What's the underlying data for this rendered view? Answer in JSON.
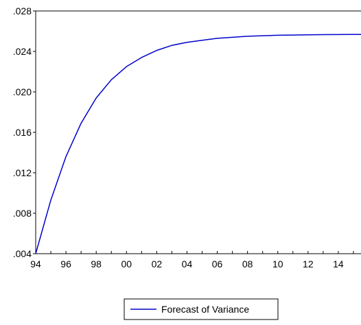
{
  "chart_data": {
    "type": "line",
    "title": "",
    "xlabel": "",
    "ylabel": "",
    "x_tick_labels": [
      "94",
      "96",
      "98",
      "00",
      "02",
      "04",
      "06",
      "08",
      "10",
      "12",
      "14"
    ],
    "y_tick_labels": [
      ".004",
      ".008",
      ".012",
      ".016",
      ".020",
      ".024",
      ".028"
    ],
    "y_ticks": [
      0.004,
      0.008,
      0.012,
      0.016,
      0.02,
      0.024,
      0.028
    ],
    "ylim": [
      0.004,
      0.028
    ],
    "xlim": [
      1994,
      2015.5
    ],
    "grid": false,
    "legend_position": "bottom-center",
    "series": [
      {
        "name": "Forecast of Variance",
        "color": "#0000cc",
        "x": [
          1994,
          1995,
          1996,
          1997,
          1998,
          1999,
          2000,
          2001,
          2002,
          2003,
          2004,
          2005,
          2006,
          2007,
          2008,
          2009,
          2010,
          2011,
          2012,
          2013,
          2014,
          2015,
          2015.5
        ],
        "y": [
          0.004,
          0.0093,
          0.0136,
          0.0169,
          0.0194,
          0.0212,
          0.0225,
          0.0234,
          0.0241,
          0.0246,
          0.0249,
          0.0251,
          0.0253,
          0.0254,
          0.0255,
          0.02555,
          0.0256,
          0.02562,
          0.02564,
          0.02566,
          0.02567,
          0.02568,
          0.02568
        ]
      }
    ]
  }
}
